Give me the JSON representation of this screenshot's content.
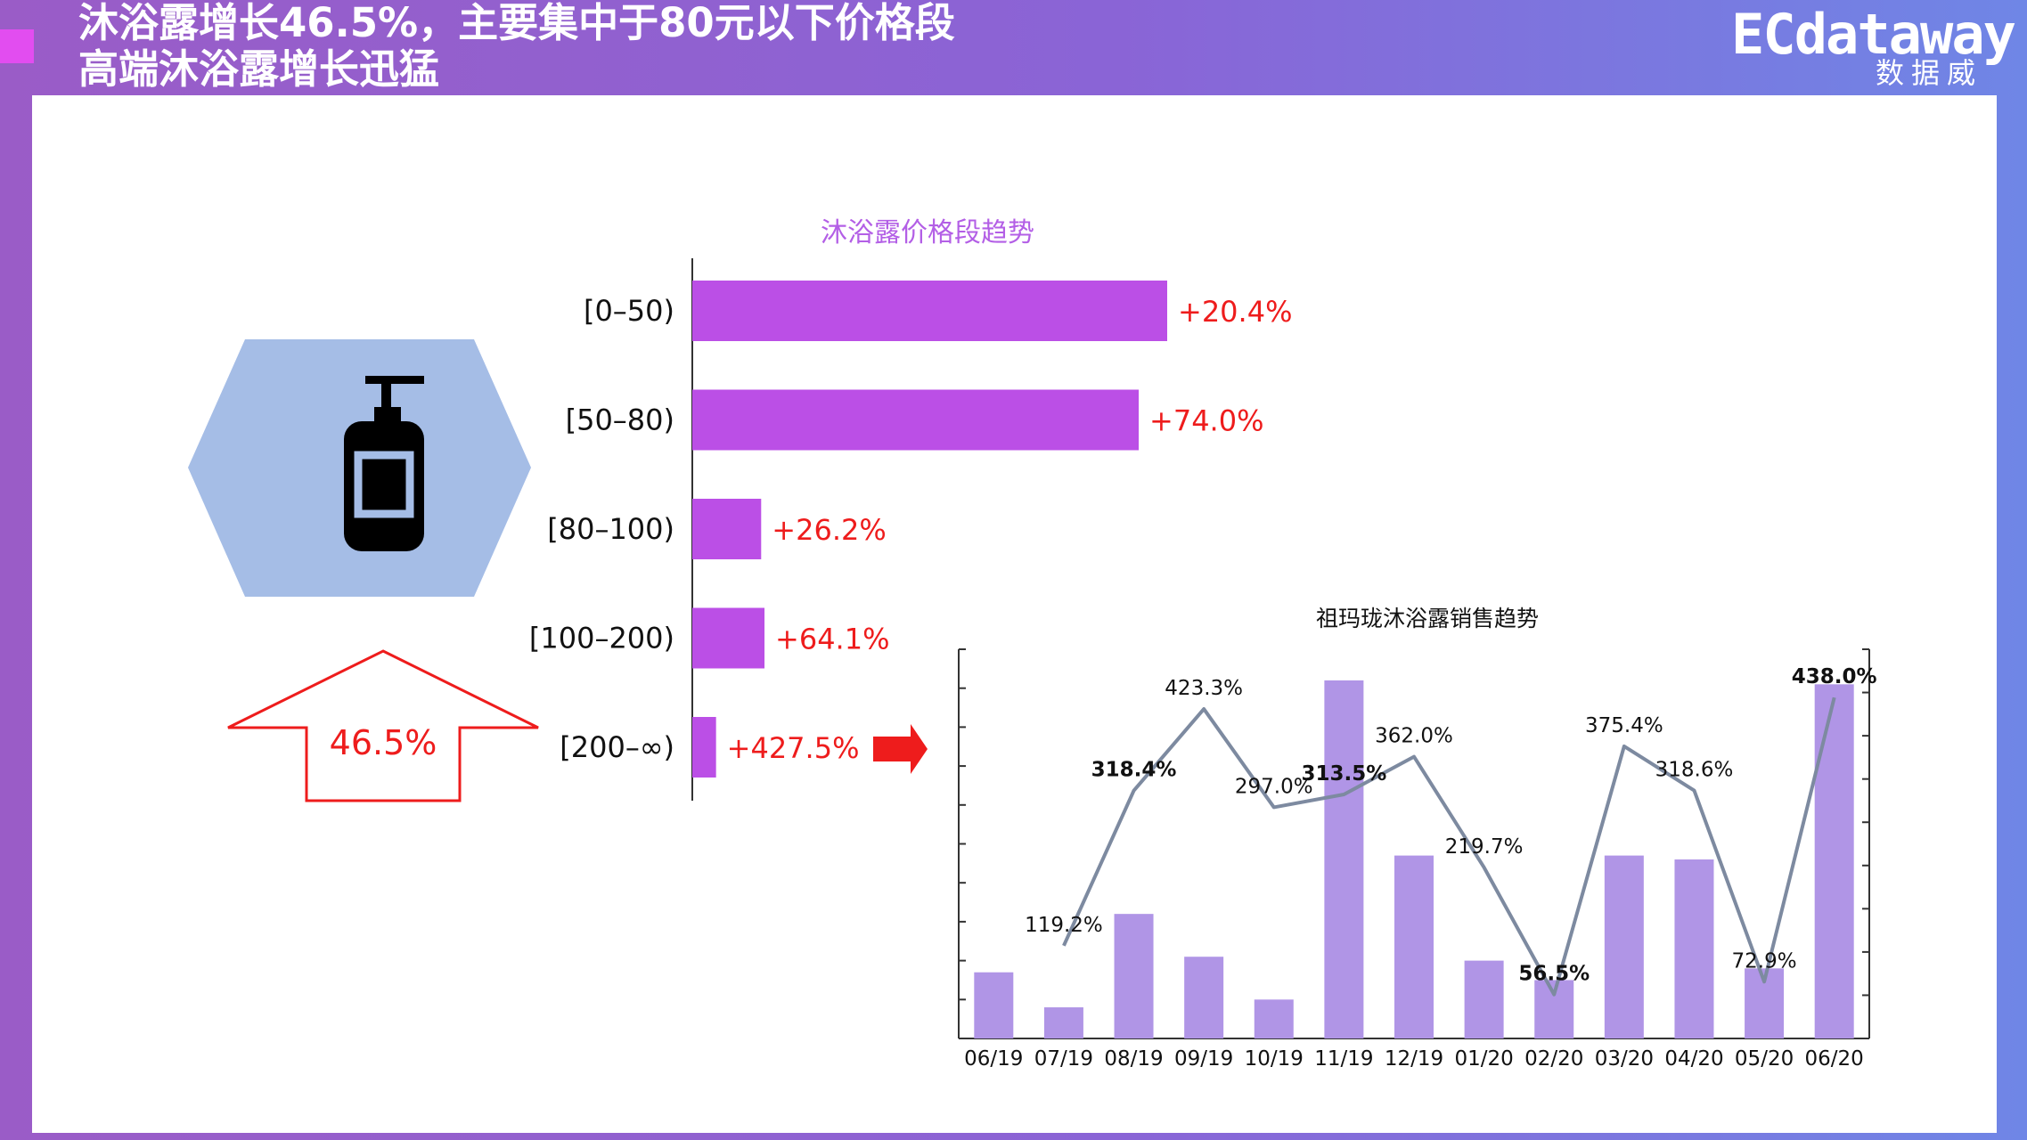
{
  "header": {
    "title_line1": "沐浴露增长46.5%，主要集中于80元以下价格段",
    "title_line2": "高端沐浴露增长迅猛"
  },
  "logo": {
    "brand": "ECdataway",
    "brand_cn": "数据威"
  },
  "callout": {
    "growth_label": "46.5%"
  },
  "icons": {
    "product": "shower-gel-bottle-icon",
    "arrow_up": "up-arrow-outline-icon",
    "arrow_right": "right-arrow-icon"
  },
  "colors": {
    "purple_bar": "#bb4fe6",
    "light_purple_bar": "#b095e6",
    "line": "#7d8aa0",
    "red": "#ee1c1c",
    "hexagon": "#a5bde6"
  },
  "chart_data": [
    {
      "type": "bar",
      "orientation": "horizontal",
      "title": "沐浴露价格段趋势",
      "categories": [
        "[0–50)",
        "[50–80)",
        "[80–100)",
        "[100–200)",
        "[200–∞)"
      ],
      "values": [
        1,
        0.94,
        0.145,
        0.152,
        0.05
      ],
      "data_labels": [
        "+20.4%",
        "+74.0%",
        "+26.2%",
        "+64.1%",
        "+427.5%"
      ]
    },
    {
      "type": "bar",
      "title": "祖玛珑沐浴露销售趋势",
      "categories": [
        "06/19",
        "07/19",
        "08/19",
        "09/19",
        "10/19",
        "11/19",
        "12/19",
        "01/20",
        "02/20",
        "03/20",
        "04/20",
        "05/20",
        "06/20"
      ],
      "bar_values": [
        17,
        8,
        32,
        21,
        10,
        92,
        47,
        20,
        15,
        47,
        46,
        18,
        91
      ],
      "bar_ylim": [
        0,
        100
      ],
      "line_values": [
        119.2,
        318.4,
        423.3,
        297.0,
        313.5,
        362.0,
        219.7,
        56.5,
        375.4,
        318.6,
        72.9,
        438.0
      ],
      "line_labels": [
        "119.2%",
        "318.4%",
        "423.3%",
        "297.0%",
        "313.5%",
        "362.0%",
        "219.7%",
        "56.5%",
        "375.4%",
        "318.6%",
        "72.9%",
        "438.0%"
      ],
      "line_ylim": [
        0,
        500
      ]
    }
  ]
}
